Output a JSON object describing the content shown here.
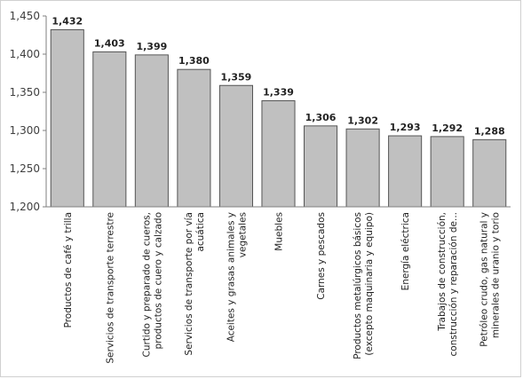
{
  "chart_data": {
    "type": "bar",
    "title": "",
    "xlabel": "",
    "ylabel": "",
    "ylim": [
      1.2,
      1.45
    ],
    "yticks": [
      1.2,
      1.25,
      1.3,
      1.35,
      1.4,
      1.45
    ],
    "ytick_labels": [
      "1,200",
      "1,250",
      "1,300",
      "1,350",
      "1,400",
      "1,450"
    ],
    "grid": false,
    "legend": "none",
    "bar_color": "#c0c0c0",
    "bar_edge": "#555555",
    "categories": [
      [
        "Productos de café y trilla"
      ],
      [
        "Servicios de transporte terrestre"
      ],
      [
        "Curtido y preparado de cueros,",
        "productos de cuero y calzado"
      ],
      [
        "Servicios de transporte por vía",
        "acuática"
      ],
      [
        "Aceites y grasas animales y",
        "vegetales"
      ],
      [
        "Muebles"
      ],
      [
        "Carnes y pescados"
      ],
      [
        "Productos metalúrgicos básicos",
        "(excepto maquinaria y equipo)"
      ],
      [
        "Energía eléctrica"
      ],
      [
        "Trabajos de construcción,",
        "construcción y reparación de..."
      ],
      [
        "Petróleo crudo, gas natural y",
        "minerales de uranio y torio"
      ]
    ],
    "values": [
      1.432,
      1.403,
      1.399,
      1.38,
      1.359,
      1.339,
      1.306,
      1.302,
      1.293,
      1.292,
      1.288
    ],
    "value_labels": [
      "1,432",
      "1,403",
      "1,399",
      "1,380",
      "1,359",
      "1,339",
      "1,306",
      "1,302",
      "1,293",
      "1,292",
      "1,288"
    ]
  }
}
